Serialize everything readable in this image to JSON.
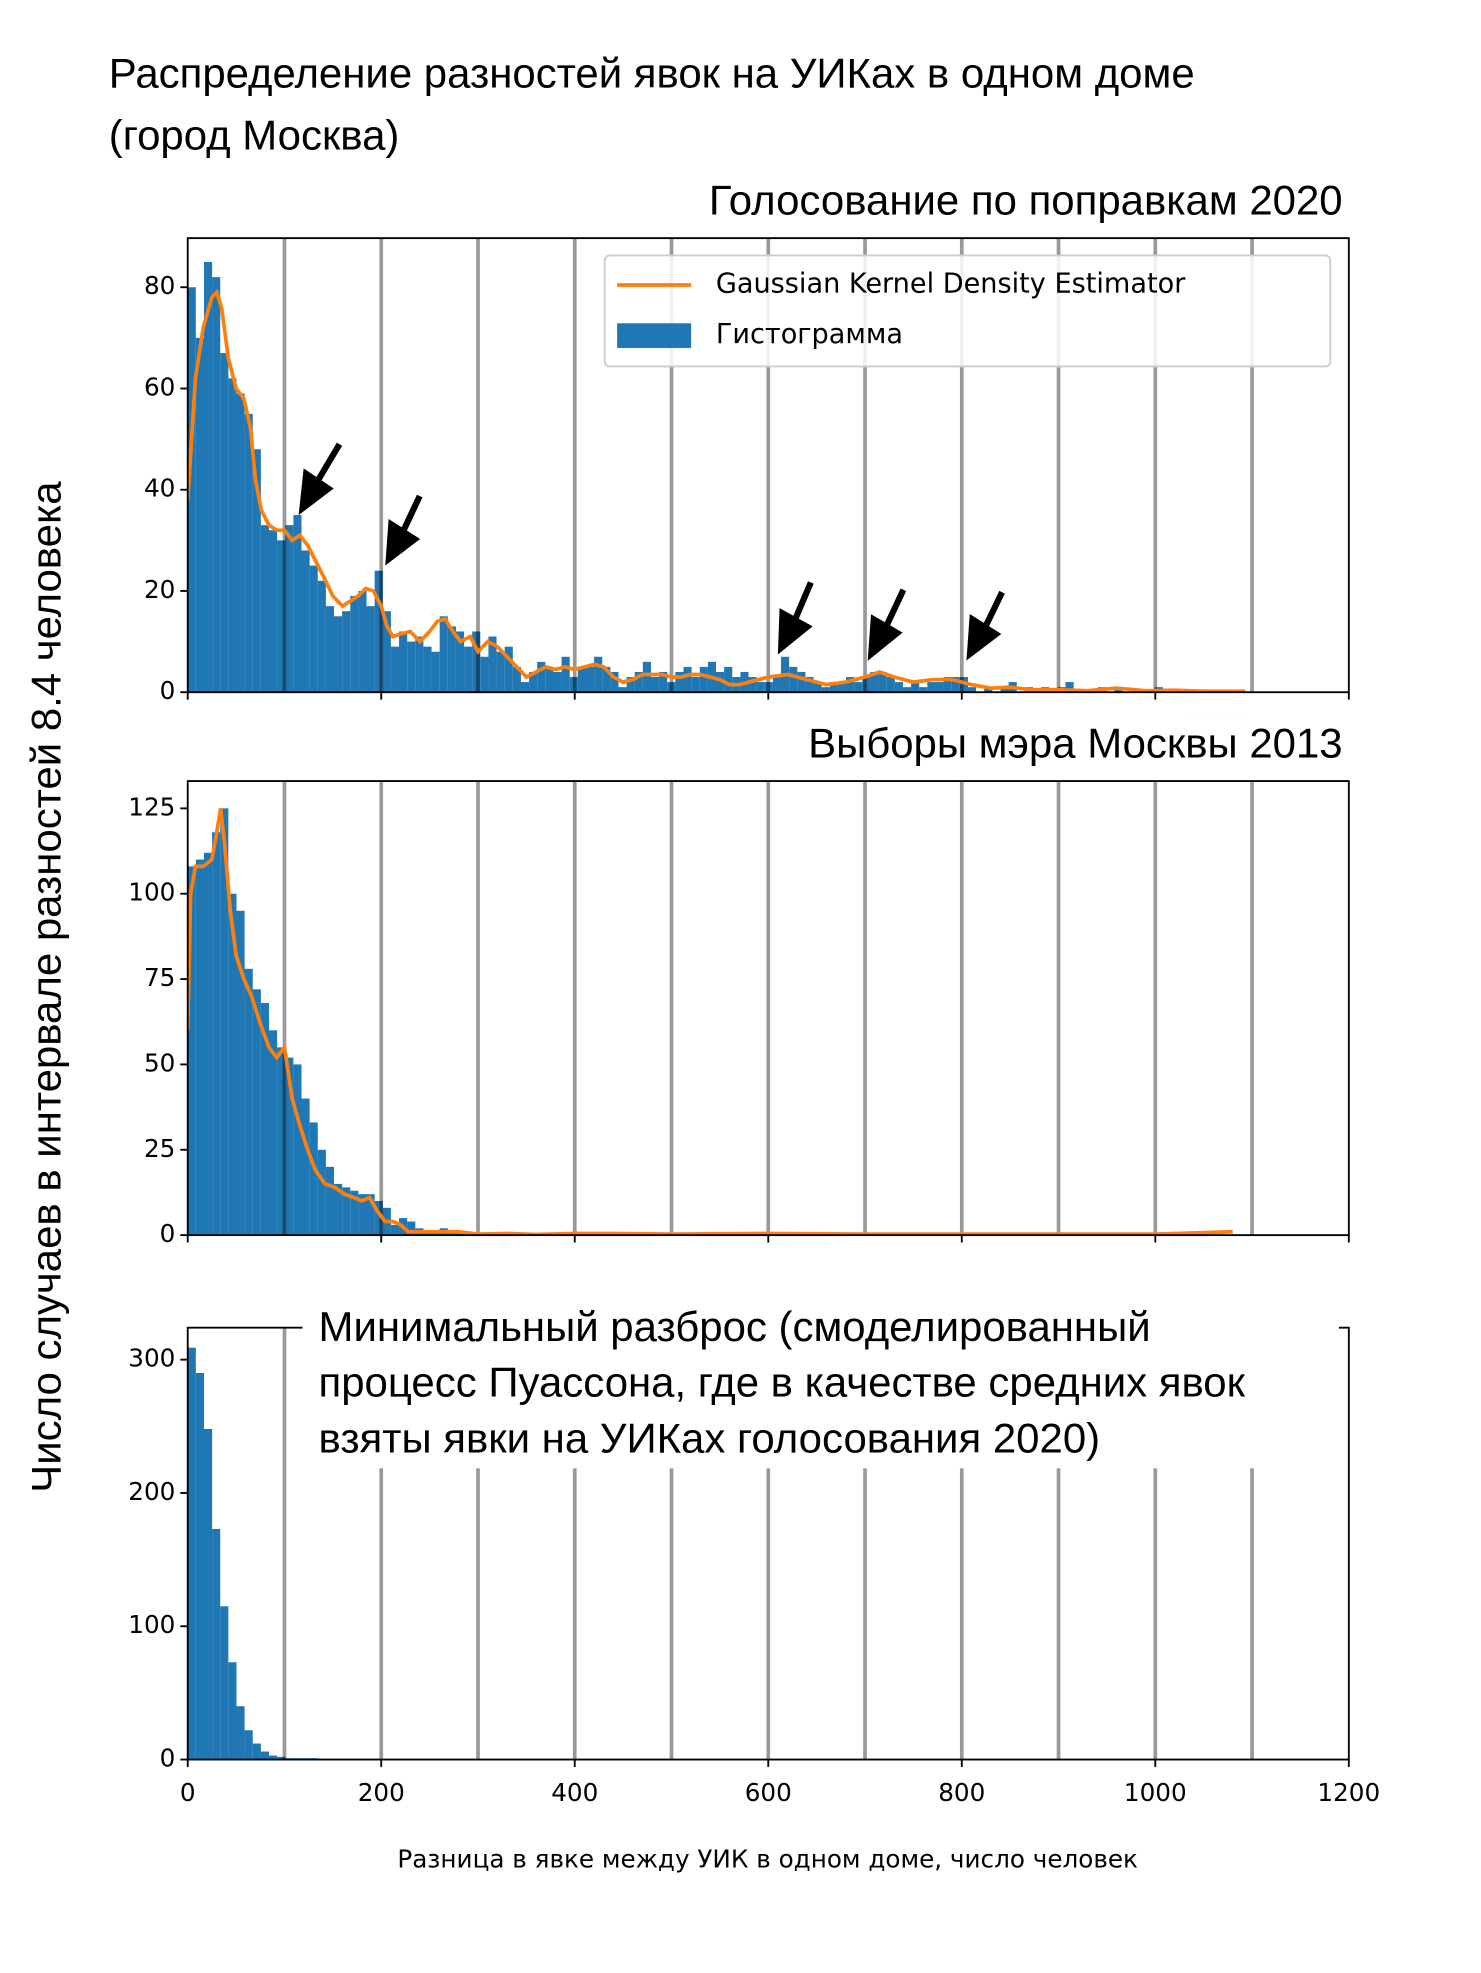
{
  "title": [
    "Распределение разностей явок на УИКах в одном доме",
    "(город Москва)"
  ],
  "ylabel": "Число случаев в интервале разностей 8.4 человека",
  "xlabel": "Разница в явке между УИК в одном доме, число человек",
  "chart_data": [
    {
      "type": "histogram",
      "title": "Голосование по поправкам 2020",
      "xlim": [
        0,
        1200
      ],
      "ylim": [
        0,
        89.7
      ],
      "yticks": [
        0,
        20,
        40,
        60,
        80
      ],
      "vlines": [
        100,
        200,
        300,
        400,
        500,
        600,
        700,
        800,
        900,
        1000,
        1100
      ],
      "legend": "upper right",
      "bins": [
        0,
        8.4,
        16.8,
        25.2,
        33.6,
        42,
        50.4,
        58.8,
        67.2,
        75.6,
        84,
        92.4,
        100.8,
        109.2,
        117.6,
        126,
        134.4,
        142.8,
        151.2,
        159.6,
        168,
        176.4,
        184.8,
        193.2,
        201.6,
        210,
        218.4,
        226.8,
        235.2,
        243.6,
        252,
        260.4,
        268.8,
        277.2,
        285.6,
        294,
        302.4,
        310.8,
        319.2,
        327.6,
        336,
        344.4,
        352.8,
        361.2,
        369.6,
        378,
        386.4,
        394.8,
        403.2,
        411.6,
        420,
        428.4,
        436.8,
        445.2,
        453.6,
        462,
        470.4,
        478.8,
        487.2,
        495.6,
        504,
        512.4,
        520.8,
        529.2,
        537.6,
        546,
        554.4,
        562.8,
        571.2,
        579.6,
        588,
        596.4,
        604.8,
        613.2,
        621.6,
        630,
        638.4,
        646.8,
        655.2,
        663.6,
        672,
        680.4,
        688.8,
        697.2,
        705.6,
        714,
        722.4,
        730.8,
        739.2,
        747.6,
        756,
        764.4,
        772.8,
        781.2,
        789.6,
        798,
        806.4,
        814.8,
        823.2,
        831.6,
        840,
        848.4,
        856.8,
        865.2,
        873.6,
        882,
        890.4,
        898.8,
        907.2,
        915.6,
        924,
        932.4,
        940.8,
        949.2,
        957.6,
        966,
        974.4,
        982.8,
        991.2,
        999.6,
        1008,
        1016.4,
        1024.8,
        1033.2,
        1041.6,
        1050,
        1058.4,
        1066.8,
        1075.2,
        1083.6,
        1092
      ],
      "series": [
        {
          "name": "Gaussian Kernel Density Estimator",
          "type": "line",
          "color": "#ff7f0e",
          "x": [
            0,
            8,
            16,
            25,
            30,
            35,
            42,
            50,
            58,
            65,
            70,
            76,
            84,
            92,
            100,
            108,
            116,
            124,
            132,
            140,
            150,
            160,
            168,
            176,
            184,
            192,
            200,
            206,
            212,
            220,
            230,
            240,
            250,
            258,
            266,
            274,
            282,
            292,
            300,
            310,
            320,
            330,
            340,
            350,
            360,
            370,
            380,
            390,
            400,
            410,
            420,
            430,
            440,
            450,
            460,
            470,
            480,
            490,
            500,
            510,
            520,
            530,
            540,
            550,
            560,
            570,
            580,
            600,
            620,
            640,
            660,
            680,
            700,
            715,
            730,
            750,
            770,
            790,
            810,
            830,
            850,
            870,
            900,
            930,
            960,
            990,
            1020,
            1050,
            1093
          ],
          "values": [
            38,
            62,
            72,
            78,
            79,
            76,
            66,
            60,
            58,
            52,
            42,
            36,
            33,
            32,
            32,
            30,
            31,
            29,
            26,
            23,
            19,
            17,
            18,
            19,
            20.5,
            20,
            17,
            13,
            11,
            11.5,
            12,
            10,
            12,
            14,
            14.5,
            12,
            10,
            11,
            8,
            10,
            9,
            7,
            5,
            3,
            4,
            5,
            4.5,
            5,
            4.5,
            5,
            5.5,
            5,
            3,
            2,
            2.5,
            3.5,
            3.5,
            3.5,
            3,
            3,
            3.5,
            3.5,
            3,
            2.5,
            1.5,
            1.5,
            2,
            3,
            3.5,
            2.5,
            1.5,
            2,
            3,
            4,
            3,
            2,
            2.5,
            2.5,
            1.5,
            0.8,
            1,
            0.5,
            0.5,
            0.3,
            0.8,
            0.3,
            0.4,
            0.2,
            0.2
          ]
        },
        {
          "name": "Гистограмма",
          "type": "histogram",
          "color": "#1f77b4",
          "values": [
            80,
            70,
            85,
            82,
            67,
            62,
            59,
            55,
            48,
            33,
            32,
            30,
            33,
            35,
            28,
            25,
            22,
            17,
            15,
            16,
            19,
            20,
            17,
            24,
            16,
            9,
            12,
            10,
            11,
            9,
            8,
            15,
            13,
            12,
            9,
            12,
            7,
            11,
            8,
            9,
            5,
            2,
            4,
            6,
            5,
            4,
            7,
            3,
            5,
            5,
            7,
            5,
            4,
            1,
            3,
            4,
            6,
            3,
            4,
            2,
            4,
            5,
            3,
            5,
            6,
            4,
            5,
            3,
            4,
            3,
            2,
            2,
            3,
            7,
            5,
            4,
            3,
            2,
            1,
            2,
            2,
            3,
            2,
            3,
            4,
            4,
            3,
            2,
            1,
            2,
            1,
            2,
            2,
            3,
            3,
            3,
            1,
            0,
            1,
            0,
            1,
            2,
            0,
            1,
            0,
            1,
            0,
            1,
            2,
            0,
            0,
            0,
            1,
            0,
            1,
            0,
            0,
            0,
            0,
            1,
            0,
            0,
            0,
            0,
            0,
            0,
            0,
            0,
            0,
            0
          ]
        }
      ]
    },
    {
      "type": "histogram",
      "title": "Выборы мэра Москвы 2013",
      "xlim": [
        0,
        1200
      ],
      "ylim": [
        0,
        133
      ],
      "yticks": [
        0,
        25,
        50,
        75,
        100,
        125
      ],
      "vlines": [
        100,
        200,
        300,
        400,
        500,
        600,
        700,
        800,
        900,
        1000,
        1100
      ],
      "bins": [
        0,
        8.4,
        16.8,
        25.2,
        33.6,
        42,
        50.4,
        58.8,
        67.2,
        75.6,
        84,
        92.4,
        100.8,
        109.2,
        117.6,
        126,
        134.4,
        142.8,
        151.2,
        159.6,
        168,
        176.4,
        184.8,
        193.2,
        201.6,
        210,
        218.4,
        226.8,
        235.2,
        243.6,
        252,
        260.4,
        268.8,
        277.2,
        285.6,
        294
      ],
      "series": [
        {
          "type": "line",
          "color": "#ff7f0e",
          "x": [
            0,
            3,
            8,
            16,
            25,
            30,
            34,
            38,
            44,
            50,
            58,
            66,
            75,
            84,
            92,
            100,
            108,
            116,
            124,
            132,
            142,
            152,
            162,
            172,
            180,
            188,
            196,
            204,
            212,
            220,
            228,
            240,
            260,
            280,
            300,
            330,
            360,
            400,
            440,
            500,
            600,
            700,
            800,
            900,
            1000,
            1080
          ],
          "values": [
            60,
            100,
            108,
            108,
            110,
            118,
            125,
            115,
            95,
            82,
            75,
            70,
            62,
            55,
            52,
            55,
            40,
            32,
            25,
            19,
            15,
            14,
            12,
            11,
            10,
            11,
            7,
            4,
            4,
            3,
            1,
            1,
            1,
            1,
            0.3,
            0.5,
            0.2,
            0.5,
            0.5,
            0.3,
            0.5,
            0.3,
            0.3,
            0.3,
            0.3,
            1
          ]
        },
        {
          "type": "histogram",
          "color": "#1f77b4",
          "values": [
            108,
            110,
            112,
            118,
            125,
            100,
            95,
            78,
            72,
            68,
            60,
            55,
            52,
            50,
            40,
            33,
            25,
            20,
            15,
            14,
            13,
            12,
            12,
            10,
            8,
            3,
            5,
            4,
            2,
            1,
            1,
            2,
            1,
            1,
            0
          ]
        }
      ]
    },
    {
      "type": "histogram",
      "title": [
        "Минимальный разброс (смоделированный",
        "процесс Пуассона, где в качестве средних явок",
        "взяты явки на УИКах голосования 2020)"
      ],
      "xlim": [
        0,
        1200
      ],
      "ylim": [
        0,
        324
      ],
      "yticks": [
        0,
        100,
        200,
        300
      ],
      "xticks": [
        0,
        200,
        400,
        600,
        800,
        1000,
        1200
      ],
      "vlines": [
        100,
        200,
        300,
        400,
        500,
        600,
        700,
        800,
        900,
        1000,
        1100
      ],
      "bins": [
        0,
        8.4,
        16.8,
        25.2,
        33.6,
        42,
        50.4,
        58.8,
        67.2,
        75.6,
        84,
        92.4,
        100.8,
        109.2,
        117.6,
        126,
        134.4
      ],
      "series": [
        {
          "type": "histogram",
          "color": "#1f77b4",
          "values": [
            309,
            290,
            248,
            173,
            115,
            73,
            40,
            22,
            12,
            6,
            3,
            2,
            1,
            1,
            1,
            1
          ]
        }
      ]
    }
  ]
}
